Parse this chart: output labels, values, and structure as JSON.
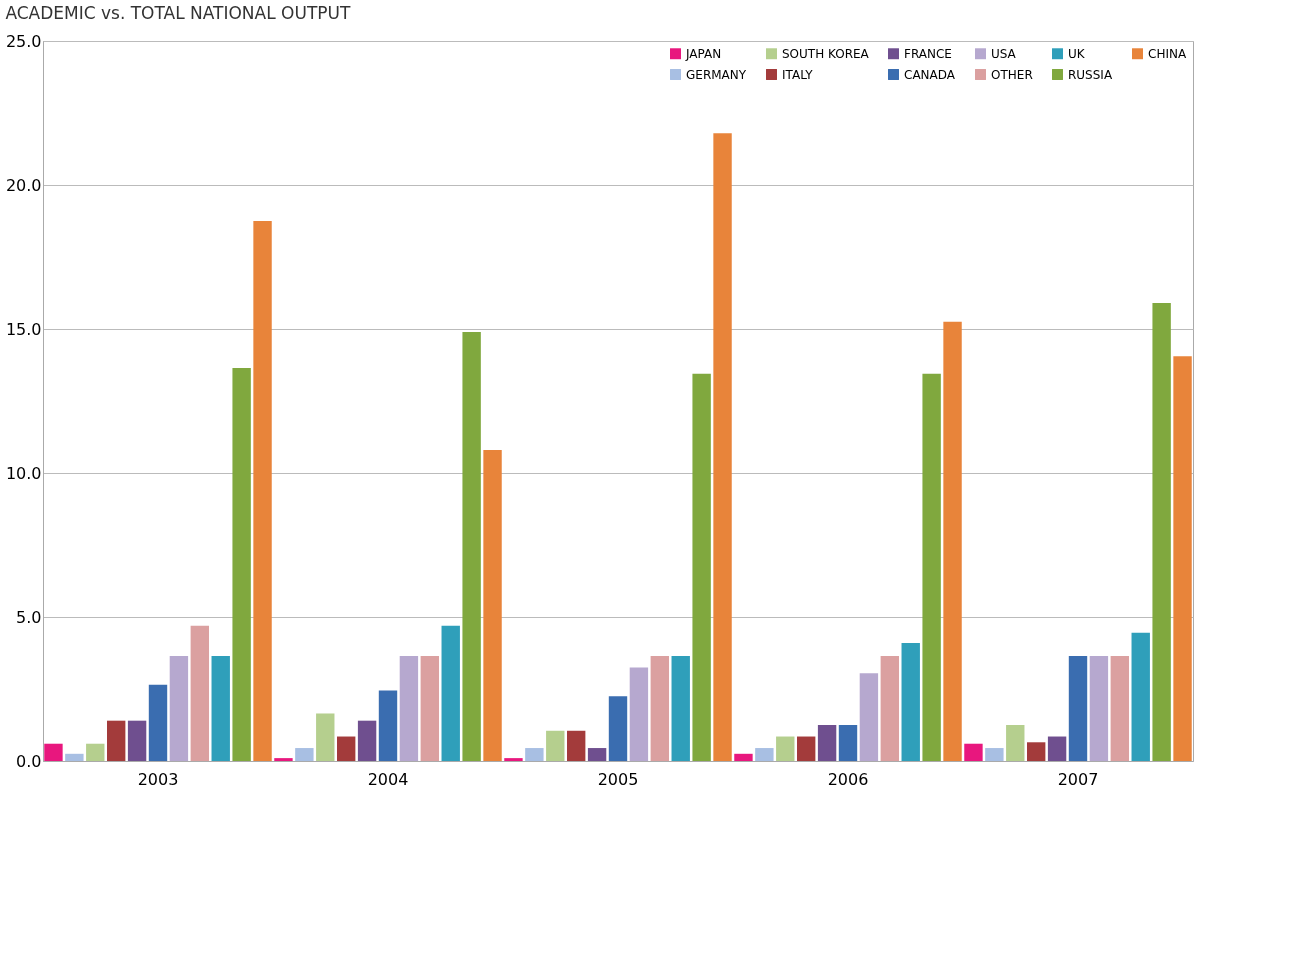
{
  "chart_data": {
    "type": "bar",
    "title": "ACADEMIC vs. TOTAL NATIONAL OUTPUT",
    "categories": [
      "2003",
      "2004",
      "2005",
      "2006",
      "2007"
    ],
    "series": [
      {
        "name": "JAPAN",
        "color": "#e8177e",
        "values": [
          0.6,
          0.1,
          0.1,
          0.25,
          0.6
        ]
      },
      {
        "name": "GERMANY",
        "color": "#a8bfe3",
        "values": [
          0.25,
          0.45,
          0.45,
          0.45,
          0.45
        ]
      },
      {
        "name": "SOUTH KOREA",
        "color": "#b5cf8e",
        "values": [
          0.6,
          1.65,
          1.05,
          0.85,
          1.25
        ]
      },
      {
        "name": "ITALY",
        "color": "#a33b3b",
        "values": [
          1.4,
          0.85,
          1.05,
          0.85,
          0.65
        ]
      },
      {
        "name": "FRANCE",
        "color": "#6f4f8f",
        "values": [
          1.4,
          1.4,
          0.45,
          1.25,
          0.85
        ]
      },
      {
        "name": "CANADA",
        "color": "#3a6db0",
        "values": [
          2.65,
          2.45,
          2.25,
          1.25,
          3.65
        ]
      },
      {
        "name": "USA",
        "color": "#b6a8cf",
        "values": [
          3.65,
          3.65,
          3.25,
          3.05,
          3.65
        ]
      },
      {
        "name": "OTHER",
        "color": "#dba0a0",
        "values": [
          4.7,
          3.65,
          3.65,
          3.65,
          3.65
        ]
      },
      {
        "name": "UK",
        "color": "#2f9fba",
        "values": [
          3.65,
          4.7,
          3.65,
          4.1,
          4.45
        ]
      },
      {
        "name": "RUSSIA",
        "color": "#80a83e",
        "values": [
          13.65,
          14.9,
          13.45,
          13.45,
          15.9
        ]
      },
      {
        "name": "CHINA",
        "color": "#e8843a",
        "values": [
          18.75,
          10.8,
          21.8,
          15.25,
          14.05
        ]
      }
    ],
    "ylim": [
      0,
      25
    ],
    "yticks": [
      {
        "value": 0,
        "label": "0.0"
      },
      {
        "value": 5,
        "label": "5.0"
      },
      {
        "value": 10,
        "label": "10.0"
      },
      {
        "value": 15,
        "label": "15.0"
      },
      {
        "value": 20,
        "label": "20.0"
      },
      {
        "value": 25,
        "label": "25.0"
      }
    ],
    "grid": "y",
    "legend": "top right"
  }
}
